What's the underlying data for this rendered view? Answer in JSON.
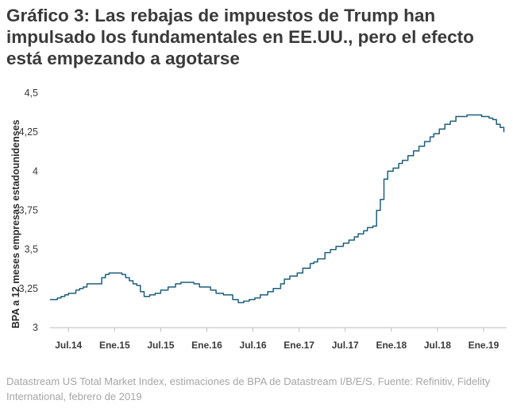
{
  "chart_data": {
    "type": "line",
    "title": "Gráfico 3: Las rebajas de impuestos de Trump han impulsado los fundamentales en EE.UU., pero el efecto está empezando a agotarse",
    "xlabel": "",
    "ylabel": "BPA a 12 meses empresas estadounidenses",
    "ylim": [
      3,
      4.5
    ],
    "yticks": [
      "3",
      "3,25",
      "3,5",
      "3,75",
      "4",
      "4,25",
      "4,5"
    ],
    "ytick_values": [
      3,
      3.25,
      3.5,
      3.75,
      4,
      4.25,
      4.5
    ],
    "xlim": [
      2014.3,
      2019.25
    ],
    "xticks": [
      "Jul.14",
      "Ene.15",
      "Jul.15",
      "Ene.16",
      "Jul.16",
      "Ene.17",
      "Jul.17",
      "Ene.18",
      "Jul.18",
      "Ene.19"
    ],
    "xtick_values": [
      2014.5,
      2015.0,
      2015.5,
      2016.0,
      2016.5,
      2017.0,
      2017.5,
      2018.0,
      2018.5,
      2019.0
    ],
    "grid": false,
    "series": [
      {
        "name": "BPA a 12 meses empresas estadounidenses",
        "color": "#1f5f7a",
        "x": [
          2014.3,
          2014.38,
          2014.42,
          2014.46,
          2014.5,
          2014.58,
          2014.62,
          2014.66,
          2014.7,
          2014.86,
          2014.9,
          2014.94,
          2015.0,
          2015.08,
          2015.12,
          2015.16,
          2015.2,
          2015.24,
          2015.28,
          2015.32,
          2015.38,
          2015.44,
          2015.5,
          2015.58,
          2015.66,
          2015.72,
          2015.8,
          2015.86,
          2015.92,
          2016.04,
          2016.1,
          2016.18,
          2016.28,
          2016.34,
          2016.4,
          2016.46,
          2016.52,
          2016.58,
          2016.66,
          2016.72,
          2016.8,
          2016.84,
          2016.9,
          2016.98,
          2017.04,
          2017.12,
          2017.16,
          2017.2,
          2017.28,
          2017.34,
          2017.4,
          2017.48,
          2017.54,
          2017.6,
          2017.64,
          2017.7,
          2017.74,
          2017.8,
          2017.84,
          2017.88,
          2017.92,
          2017.96,
          2018.02,
          2018.08,
          2018.12,
          2018.18,
          2018.24,
          2018.3,
          2018.36,
          2018.42,
          2018.46,
          2018.52,
          2018.58,
          2018.64,
          2018.7,
          2018.76,
          2018.82,
          2018.88,
          2018.94,
          2018.98,
          2019.02,
          2019.06,
          2019.1,
          2019.14,
          2019.18,
          2019.22
        ],
        "y": [
          3.18,
          3.19,
          3.2,
          3.21,
          3.22,
          3.24,
          3.25,
          3.26,
          3.28,
          3.32,
          3.34,
          3.35,
          3.35,
          3.34,
          3.32,
          3.3,
          3.28,
          3.27,
          3.23,
          3.2,
          3.21,
          3.22,
          3.24,
          3.26,
          3.28,
          3.29,
          3.29,
          3.28,
          3.26,
          3.24,
          3.22,
          3.21,
          3.18,
          3.16,
          3.17,
          3.18,
          3.19,
          3.21,
          3.23,
          3.25,
          3.28,
          3.31,
          3.33,
          3.35,
          3.38,
          3.41,
          3.42,
          3.44,
          3.48,
          3.5,
          3.52,
          3.54,
          3.56,
          3.58,
          3.6,
          3.62,
          3.64,
          3.65,
          3.75,
          3.82,
          3.95,
          4.0,
          4.02,
          4.05,
          4.07,
          4.1,
          4.13,
          4.16,
          4.19,
          4.22,
          4.24,
          4.27,
          4.3,
          4.32,
          4.35,
          4.35,
          4.36,
          4.36,
          4.36,
          4.35,
          4.35,
          4.34,
          4.33,
          4.3,
          4.28,
          4.25
        ]
      }
    ]
  },
  "source": "Datastream US Total Market Index, estimaciones de BPA de Datastream I/B/E/S. Fuente: Refinitiv, Fidelity International, febrero de 2019"
}
